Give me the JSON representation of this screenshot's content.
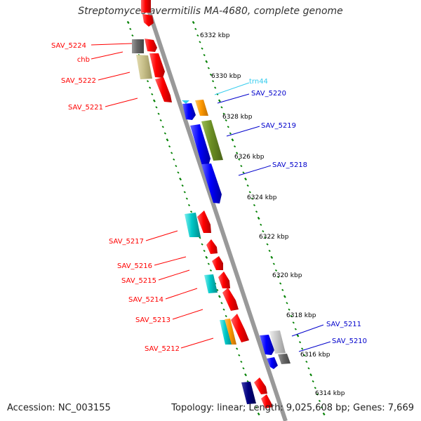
{
  "title": "Streptomyces avermitilis MA-4680, complete genome",
  "footer": {
    "accession": "Accession: NC_003155",
    "summary": "Topology: linear; Length: 9,025,608 bp; Genes: 7,669"
  },
  "colors": {
    "red_gene": "#ff0000",
    "blue_gene": "#0000ff",
    "cyan_gene": "#00c8c8",
    "orange_gene": "#ff9900",
    "olive_gene": "#6b8e23",
    "khaki_gene": "#c8c08a",
    "gray_gene": "#666666",
    "silver_gene": "#c8c8c8",
    "navy_gene": "#000080",
    "trna": "#33ccee",
    "ruler": "#008000",
    "backbone": "#999999"
  },
  "scale_labels": [
    "6332 kbp",
    "6330 kbp",
    "6328 kbp",
    "6326 kbp",
    "6324 kbp",
    "6322 kbp",
    "6320 kbp",
    "6318 kbp",
    "6316 kbp",
    "6314 kbp"
  ],
  "left_labels": [
    "SAV_5224",
    "chb",
    "SAV_5222",
    "SAV_5221",
    "SAV_5217",
    "SAV_5216",
    "SAV_5215",
    "SAV_5214",
    "SAV_5213",
    "SAV_5212"
  ],
  "right_labels": [
    "trn44",
    "SAV_5220",
    "SAV_5219",
    "SAV_5218",
    "SAV_5211",
    "SAV_5210"
  ]
}
